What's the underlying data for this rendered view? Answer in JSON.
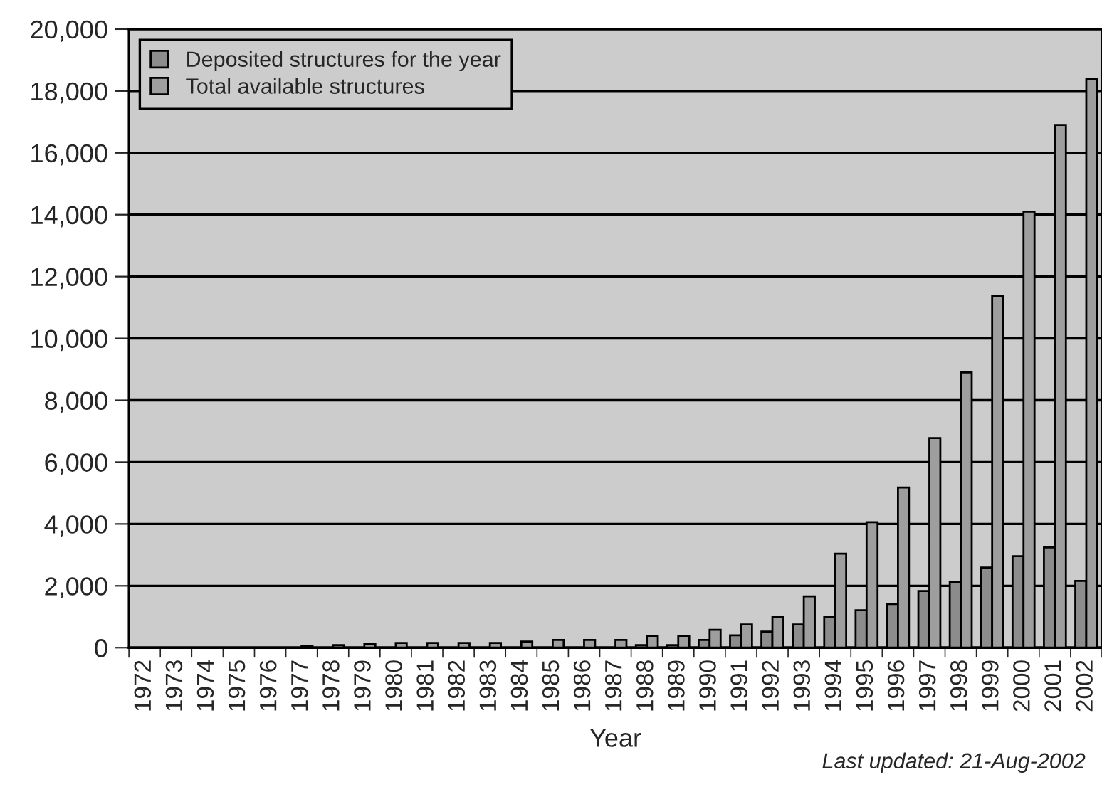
{
  "chart_data": {
    "type": "bar",
    "xlabel": "Year",
    "categories": [
      "1972",
      "1973",
      "1974",
      "1975",
      "1976",
      "1977",
      "1978",
      "1979",
      "1980",
      "1981",
      "1982",
      "1983",
      "1984",
      "1985",
      "1986",
      "1987",
      "1988",
      "1989",
      "1990",
      "1991",
      "1992",
      "1993",
      "1994",
      "1995",
      "1996",
      "1997",
      "1998",
      "1999",
      "2000",
      "2001",
      "2002"
    ],
    "series": [
      {
        "name": "Deposited structures for the year",
        "color": "#8c8c8c",
        "values": [
          0,
          0,
          0,
          0,
          0,
          0,
          0,
          0,
          0,
          0,
          0,
          0,
          0,
          0,
          0,
          0,
          80,
          80,
          250,
          400,
          520,
          750,
          1000,
          1210,
          1410,
          1830,
          2120,
          2590,
          2960,
          3240,
          2160
        ]
      },
      {
        "name": "Total available structures",
        "color": "#9e9e9e",
        "values": [
          0,
          0,
          0,
          0,
          0,
          50,
          80,
          130,
          150,
          150,
          150,
          150,
          200,
          250,
          250,
          250,
          380,
          380,
          580,
          750,
          1000,
          1660,
          3040,
          4060,
          5180,
          6780,
          8900,
          11380,
          14100,
          16900,
          18390
        ]
      }
    ],
    "ylim": [
      0,
      20000
    ],
    "yticks": [
      {
        "value": 0,
        "label": "0"
      },
      {
        "value": 2000,
        "label": "2,000"
      },
      {
        "value": 4000,
        "label": "4,000"
      },
      {
        "value": 6000,
        "label": "6,000"
      },
      {
        "value": 8000,
        "label": "8,000"
      },
      {
        "value": 10000,
        "label": "10,000"
      },
      {
        "value": 12000,
        "label": "12,000"
      },
      {
        "value": 14000,
        "label": "14,000"
      },
      {
        "value": 16000,
        "label": "16,000"
      },
      {
        "value": 18000,
        "label": "18,000"
      },
      {
        "value": 20000,
        "label": "20,000"
      }
    ],
    "grid": "y",
    "legend": "top left",
    "annotations": [
      "Last updated: 21-Aug-2002"
    ]
  }
}
